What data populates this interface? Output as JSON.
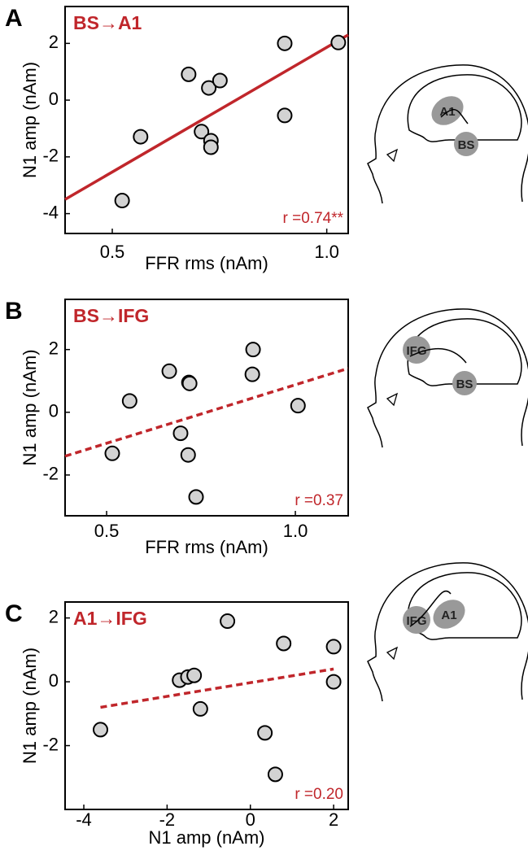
{
  "chart_data": [
    {
      "type": "scatter",
      "panel": "A",
      "title": "BS→A1",
      "annotation": "r =0.74**",
      "x_label": "FFR rms (nAm)",
      "y_label": "N1 amp (nAm)",
      "x": [
        0.566,
        0.523,
        0.678,
        0.725,
        0.751,
        0.708,
        0.73,
        0.73,
        0.902,
        1.027,
        0.902
      ],
      "y": [
        -1.29,
        -3.54,
        0.91,
        0.43,
        0.69,
        -1.11,
        -1.43,
        -1.66,
        2.0,
        2.03,
        -0.54
      ],
      "color": "#d3d3d3",
      "fit": {
        "x": [
          0.39,
          1.05
        ],
        "y": [
          -3.5,
          2.3
        ],
        "style": "solid",
        "color": "#c0262b"
      },
      "xlim": [
        0.39,
        1.05
      ],
      "xticks": [
        0.5,
        {
          "value": 1,
          "label": "1.0"
        }
      ],
      "ylim": [
        -4.7,
        3.3
      ],
      "yticks": [
        -4,
        -2,
        0,
        2
      ],
      "diagram_regions": [
        "A1",
        "BS"
      ]
    },
    {
      "type": "scatter",
      "panel": "B",
      "title": "BS→IFG",
      "annotation": "r =0.37",
      "x_label": "FFR rms (nAm)",
      "y_label": "N1 amp (nAm)",
      "x": [
        0.515,
        0.561,
        0.666,
        0.696,
        0.718,
        0.72,
        0.716,
        0.737,
        0.888,
        0.886,
        1.007
      ],
      "y": [
        -1.31,
        0.36,
        1.31,
        -0.67,
        0.95,
        0.92,
        -1.36,
        -2.7,
        2.0,
        1.21,
        0.21
      ],
      "color": "#d3d3d3",
      "fit": {
        "x": [
          0.39,
          1.14
        ],
        "y": [
          -1.4,
          1.4
        ],
        "style": "dashed",
        "color": "#c0262b"
      },
      "xlim": [
        0.39,
        1.14
      ],
      "xticks": [
        0.5,
        {
          "value": 1,
          "label": "1.0"
        }
      ],
      "ylim": [
        -3.3,
        3.6
      ],
      "yticks": [
        -2,
        0,
        2
      ],
      "diagram_regions": [
        "IFG",
        "BS"
      ]
    },
    {
      "type": "scatter",
      "panel": "C",
      "title": "A1→IFG",
      "annotation": "r =0.20",
      "x_label": "N1 amp (nAm)",
      "y_label": "N1 amp (nAm)",
      "x": [
        -3.6,
        -1.7,
        -1.5,
        -1.35,
        -1.2,
        -0.55,
        0.35,
        0.6,
        0.8,
        2.0,
        2.0
      ],
      "y": [
        -1.5,
        0.05,
        0.15,
        0.2,
        -0.85,
        1.9,
        -1.6,
        -2.9,
        1.2,
        1.1,
        0.0
      ],
      "color": "#d3d3d3",
      "fit": {
        "x": [
          -3.6,
          2.0
        ],
        "y": [
          -0.8,
          0.4
        ],
        "style": "dashed",
        "color": "#c0262b"
      },
      "xlim": [
        -4.45,
        2.35
      ],
      "xticks": [
        -4,
        -2,
        0,
        2
      ],
      "ylim": [
        -4.0,
        2.5
      ],
      "yticks": [
        -2,
        0,
        2
      ],
      "diagram_regions": [
        "IFG",
        "A1"
      ]
    }
  ]
}
